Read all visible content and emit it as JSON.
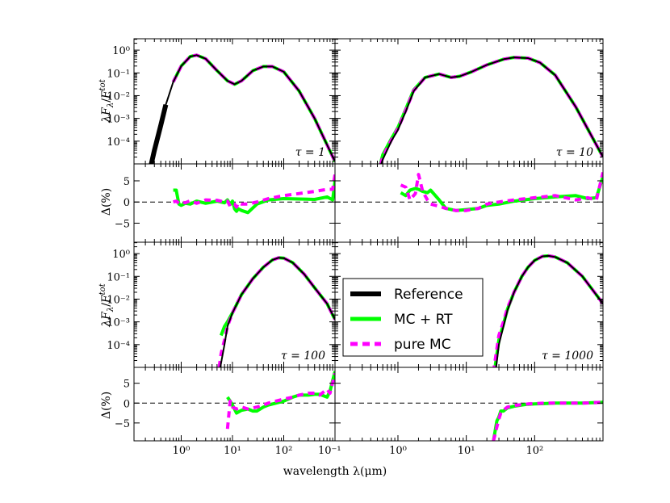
{
  "chart_data": {
    "type": "line",
    "title": "",
    "xlabel": "wavelength λ(μm)",
    "xscale": "log",
    "xlim": [
      0.12,
      1000
    ],
    "x_tick_labels": [
      "10⁻¹",
      "10⁰",
      "10¹",
      "10²"
    ],
    "left_x_tick_labels": [
      "10⁰",
      "10¹",
      "10²"
    ],
    "sed_ylabel": "λFλ/F^tot",
    "sed_ylim_log10": [
      -5,
      0.5
    ],
    "sed_y_tick_labels": [
      "10⁰",
      "10⁻¹",
      "10⁻²",
      "10⁻³",
      "10⁻⁴"
    ],
    "residual_ylabel": "Δ(%)",
    "residual_ylim": [
      -9.5,
      9
    ],
    "residual_y_tick_labels": [
      "5",
      "0",
      "−5"
    ],
    "legend": {
      "location": "center",
      "entries": [
        {
          "label": "Reference",
          "color": "#000000",
          "style": "solid"
        },
        {
          "label": "MC + RT",
          "color": "#00ff00",
          "style": "solid"
        },
        {
          "label": "pure MC",
          "color": "#ff00ff",
          "style": "dashed"
        }
      ]
    },
    "panels": [
      {
        "tau_label": "τ = 1",
        "x": [
          0.25,
          0.3,
          0.4,
          0.5,
          0.7,
          1,
          1.5,
          2,
          3,
          5,
          8,
          11,
          15,
          25,
          40,
          60,
          100,
          200,
          400,
          1000
        ],
        "reference_log10": [
          -5.2,
          -4.4,
          -3.3,
          -2.4,
          -1.4,
          -0.7,
          -0.28,
          -0.22,
          -0.38,
          -0.9,
          -1.35,
          -1.5,
          -1.35,
          -0.9,
          -0.72,
          -0.72,
          -0.95,
          -1.8,
          -3.0,
          -4.9
        ],
        "mcrt_log10": [
          null,
          null,
          null,
          null,
          -1.4,
          -0.7,
          -0.28,
          -0.22,
          -0.38,
          -0.9,
          -1.35,
          -1.5,
          -1.35,
          -0.9,
          -0.72,
          -0.72,
          -0.95,
          -1.8,
          -3.0,
          -4.9
        ],
        "puremc_log10": [
          null,
          null,
          null,
          null,
          -1.4,
          -0.7,
          -0.28,
          -0.22,
          -0.38,
          -0.9,
          -1.35,
          -1.5,
          -1.35,
          -0.9,
          -0.72,
          -0.72,
          -0.95,
          -1.8,
          -3.0,
          -4.9
        ],
        "residual_x": [
          0.7,
          0.8,
          0.9,
          1,
          1.2,
          1.5,
          2,
          3,
          5,
          7,
          8,
          9,
          10,
          11,
          12,
          13,
          15,
          20,
          30,
          50,
          100,
          200,
          400,
          700,
          900,
          1000
        ],
        "mcrt_residual": [
          2.8,
          2.8,
          -0.5,
          -0.8,
          -0.3,
          -0.5,
          0.2,
          -0.3,
          0.2,
          -0.2,
          0.5,
          -0.6,
          0.2,
          -1.6,
          -2.2,
          -1.6,
          -2.0,
          -2.5,
          -0.5,
          0.5,
          0.8,
          0.7,
          0.6,
          1.2,
          0.5,
          5.0
        ],
        "puremc_residual": [
          0.0,
          0.2,
          -0.3,
          0.0,
          -0.2,
          0.3,
          -0.3,
          0.5,
          0.4,
          0.0,
          0.2,
          -1.0,
          -0.8,
          -0.5,
          -1.2,
          -0.2,
          -0.5,
          -0.5,
          0.0,
          0.8,
          1.5,
          2.0,
          2.5,
          3.0,
          3.0,
          6.5
        ]
      },
      {
        "tau_label": "τ = 10",
        "x": [
          0.5,
          0.6,
          0.8,
          1,
          1.3,
          1.7,
          2.5,
          4,
          6,
          8,
          12,
          20,
          35,
          50,
          80,
          120,
          200,
          400,
          1000
        ],
        "reference_log10": [
          -5.5,
          -4.8,
          -4.0,
          -3.5,
          -2.7,
          -1.8,
          -1.2,
          -1.05,
          -1.2,
          -1.15,
          -0.95,
          -0.65,
          -0.4,
          -0.32,
          -0.35,
          -0.55,
          -1.1,
          -2.5,
          -4.7
        ],
        "mcrt_log10": [
          -5.5,
          -4.6,
          -3.9,
          -3.4,
          -2.6,
          -1.75,
          -1.2,
          -1.05,
          -1.2,
          -1.15,
          -0.95,
          -0.65,
          -0.4,
          -0.32,
          -0.35,
          -0.55,
          -1.1,
          -2.5,
          -4.7
        ],
        "puremc_log10": [
          -5.5,
          -4.7,
          -3.95,
          -3.45,
          -2.65,
          -1.78,
          -1.2,
          -1.05,
          -1.2,
          -1.15,
          -0.95,
          -0.65,
          -0.4,
          -0.32,
          -0.35,
          -0.55,
          -1.1,
          -2.5,
          -4.7
        ],
        "residual_x": [
          1.1,
          1.3,
          1.5,
          1.8,
          2,
          2.3,
          2.7,
          3,
          4,
          5,
          7,
          10,
          15,
          20,
          30,
          50,
          100,
          200,
          400,
          600,
          800,
          1000
        ],
        "mcrt_residual": [
          2.2,
          1.5,
          2.8,
          3.2,
          3.0,
          2.5,
          2.2,
          2.8,
          0.5,
          -1.5,
          -2.0,
          -1.8,
          -1.5,
          -0.8,
          -0.5,
          0.2,
          0.8,
          1.2,
          1.5,
          0.8,
          1.0,
          6.0
        ],
        "puremc_residual": [
          4.0,
          3.5,
          0.5,
          2.0,
          6.5,
          2.5,
          0.5,
          -0.5,
          -1.0,
          -1.5,
          -2.0,
          -2.0,
          -1.5,
          -0.5,
          0.0,
          0.5,
          1.0,
          1.5,
          0.5,
          1.0,
          0.5,
          7.0
        ]
      },
      {
        "tau_label": "τ = 100",
        "x": [
          5.5,
          6,
          7,
          8,
          10,
          15,
          25,
          40,
          60,
          80,
          100,
          150,
          250,
          400,
          700,
          1000
        ],
        "reference_log10": [
          -5.3,
          -4.8,
          -4.0,
          -3.2,
          -2.6,
          -1.8,
          -1.1,
          -0.6,
          -0.28,
          -0.18,
          -0.2,
          -0.4,
          -0.9,
          -1.5,
          -2.2,
          -2.9
        ],
        "mcrt_log10": [
          null,
          -3.6,
          -3.2,
          -3.0,
          -2.6,
          -1.8,
          -1.1,
          -0.6,
          -0.28,
          -0.18,
          -0.2,
          -0.4,
          -0.9,
          -1.5,
          -2.2,
          -2.9
        ],
        "puremc_log10": [
          -5.0,
          -4.4,
          -3.8,
          -3.2,
          -2.6,
          -1.8,
          -1.1,
          -0.6,
          -0.28,
          -0.18,
          -0.2,
          -0.4,
          -0.9,
          -1.5,
          -2.2,
          -2.9
        ],
        "residual_x": [
          8,
          9,
          10,
          12,
          15,
          20,
          25,
          30,
          40,
          50,
          70,
          100,
          150,
          200,
          300,
          400,
          500,
          700,
          800,
          1000
        ],
        "mcrt_residual": [
          1.5,
          0.5,
          -0.5,
          -2.5,
          -1.8,
          -1.5,
          -2.0,
          -2.0,
          -1.0,
          -0.5,
          0.0,
          0.5,
          1.5,
          2.0,
          2.0,
          2.2,
          2.2,
          1.5,
          3.0,
          8.0
        ],
        "puremc_residual": [
          -6.5,
          0.5,
          -1.0,
          -1.5,
          -1.0,
          -1.5,
          -1.2,
          -1.0,
          -0.5,
          0.0,
          0.5,
          1.0,
          1.5,
          2.0,
          2.5,
          2.5,
          2.0,
          3.5,
          2.5,
          7.5
        ]
      },
      {
        "tau_label": "τ = 1000",
        "x": [
          25,
          30,
          35,
          40,
          50,
          65,
          80,
          100,
          130,
          160,
          200,
          300,
          500,
          1000
        ],
        "reference_log10": [
          -6.0,
          -4.0,
          -3.2,
          -2.5,
          -1.7,
          -1.0,
          -0.6,
          -0.3,
          -0.12,
          -0.1,
          -0.15,
          -0.4,
          -1.0,
          -2.2
        ],
        "mcrt_log10": [
          -5.5,
          -3.8,
          -3.1,
          -2.45,
          -1.7,
          -1.0,
          -0.6,
          -0.3,
          -0.12,
          -0.1,
          -0.15,
          -0.4,
          -1.0,
          -2.2
        ],
        "puremc_log10": [
          -5.2,
          -3.6,
          -3.0,
          -2.4,
          -1.7,
          -1.0,
          -0.6,
          -0.3,
          -0.12,
          -0.1,
          -0.15,
          -0.4,
          -1.0,
          -2.2
        ],
        "residual_x": [
          25,
          28,
          30,
          32,
          35,
          40,
          50,
          65,
          80,
          100,
          150,
          200,
          300,
          500,
          700,
          1000
        ],
        "mcrt_residual": [
          -9.5,
          -4.5,
          -3.5,
          -2.0,
          -2.0,
          -1.2,
          -0.8,
          -0.5,
          -0.3,
          -0.2,
          -0.1,
          0.0,
          0.0,
          0.0,
          0.1,
          0.2
        ],
        "puremc_residual": [
          -9.5,
          -6.0,
          -4.0,
          -2.5,
          -1.8,
          -1.0,
          -0.6,
          -0.4,
          -0.2,
          -0.1,
          0.0,
          0.0,
          0.0,
          0.0,
          0.1,
          0.2
        ]
      }
    ]
  }
}
